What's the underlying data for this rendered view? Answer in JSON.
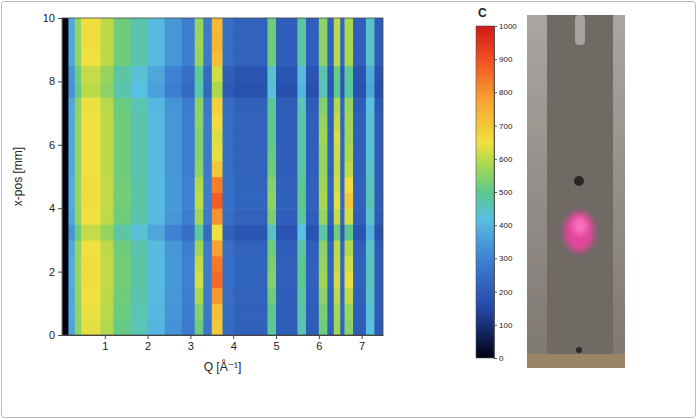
{
  "chart_data": {
    "type": "heatmap",
    "x_label": "Q [Å⁻¹]",
    "y_label": "x-pos [mm]",
    "xlim": [
      0,
      7.5
    ],
    "xticks": [
      1,
      2,
      3,
      4,
      5,
      6,
      7
    ],
    "ylim": [
      0,
      10
    ],
    "yticks": [
      0,
      2,
      4,
      6,
      8,
      10
    ],
    "x_edges": [
      0,
      0.15,
      0.3,
      0.45,
      0.9,
      1.2,
      1.6,
      2.0,
      2.4,
      2.8,
      3.1,
      3.3,
      3.5,
      3.75,
      4.0,
      4.8,
      5.0,
      5.5,
      5.7,
      6.0,
      6.2,
      6.35,
      6.5,
      6.6,
      6.8,
      7.1,
      7.3,
      7.5
    ],
    "y_edges": [
      0,
      0.5,
      1,
      1.5,
      2,
      2.5,
      3,
      3.5,
      4,
      4.5,
      5,
      5.5,
      6,
      6.5,
      7,
      7.5,
      8,
      8.5,
      9,
      9.5,
      10
    ],
    "cells": [
      [
        0,
        370,
        550,
        640,
        590,
        510,
        460,
        400,
        330,
        280,
        520,
        270,
        700,
        240,
        215,
        490,
        205,
        460,
        205,
        520,
        215,
        570,
        225,
        550,
        205,
        420,
        195
      ],
      [
        0,
        375,
        555,
        645,
        595,
        515,
        465,
        405,
        335,
        285,
        540,
        275,
        720,
        245,
        218,
        500,
        208,
        470,
        208,
        530,
        218,
        580,
        228,
        560,
        208,
        430,
        198
      ],
      [
        0,
        380,
        560,
        650,
        600,
        520,
        470,
        410,
        340,
        290,
        580,
        280,
        790,
        250,
        220,
        520,
        210,
        480,
        210,
        550,
        220,
        600,
        230,
        600,
        210,
        440,
        200
      ],
      [
        0,
        385,
        565,
        655,
        605,
        525,
        475,
        415,
        345,
        295,
        620,
        285,
        860,
        255,
        225,
        540,
        215,
        490,
        215,
        570,
        225,
        620,
        235,
        640,
        215,
        450,
        205
      ],
      [
        0,
        385,
        565,
        655,
        605,
        525,
        475,
        415,
        345,
        295,
        610,
        285,
        840,
        255,
        225,
        530,
        215,
        490,
        215,
        560,
        225,
        610,
        235,
        620,
        215,
        450,
        205
      ],
      [
        0,
        380,
        560,
        650,
        600,
        520,
        470,
        410,
        340,
        290,
        570,
        280,
        780,
        250,
        220,
        520,
        210,
        480,
        210,
        550,
        220,
        600,
        230,
        590,
        210,
        440,
        200
      ],
      [
        0,
        340,
        520,
        610,
        560,
        480,
        430,
        370,
        300,
        250,
        480,
        240,
        650,
        215,
        190,
        450,
        180,
        420,
        180,
        480,
        190,
        520,
        200,
        500,
        180,
        390,
        175
      ],
      [
        0,
        380,
        560,
        650,
        600,
        520,
        470,
        410,
        340,
        290,
        570,
        280,
        800,
        250,
        220,
        530,
        210,
        480,
        210,
        560,
        220,
        610,
        230,
        620,
        210,
        440,
        200
      ],
      [
        0,
        385,
        565,
        655,
        605,
        525,
        475,
        415,
        345,
        295,
        600,
        285,
        880,
        255,
        225,
        550,
        215,
        500,
        215,
        580,
        225,
        640,
        235,
        700,
        215,
        460,
        205
      ],
      [
        0,
        385,
        565,
        655,
        605,
        525,
        475,
        415,
        345,
        295,
        590,
        285,
        830,
        255,
        225,
        540,
        215,
        490,
        215,
        570,
        225,
        620,
        235,
        660,
        215,
        450,
        205
      ],
      [
        0,
        380,
        560,
        650,
        600,
        520,
        470,
        410,
        340,
        290,
        550,
        280,
        700,
        250,
        220,
        520,
        210,
        480,
        210,
        560,
        220,
        610,
        230,
        600,
        210,
        440,
        200
      ],
      [
        0,
        380,
        560,
        650,
        600,
        520,
        470,
        410,
        340,
        290,
        540,
        280,
        640,
        250,
        220,
        510,
        210,
        470,
        210,
        560,
        220,
        620,
        230,
        580,
        210,
        430,
        200
      ],
      [
        0,
        380,
        560,
        650,
        600,
        520,
        470,
        410,
        340,
        290,
        540,
        280,
        630,
        250,
        220,
        500,
        210,
        470,
        210,
        570,
        220,
        630,
        230,
        570,
        210,
        430,
        200
      ],
      [
        0,
        380,
        560,
        650,
        600,
        520,
        470,
        410,
        340,
        290,
        550,
        280,
        660,
        250,
        220,
        500,
        210,
        470,
        210,
        560,
        220,
        610,
        230,
        570,
        210,
        430,
        200
      ],
      [
        0,
        375,
        555,
        645,
        595,
        515,
        465,
        405,
        335,
        285,
        550,
        275,
        680,
        245,
        215,
        490,
        205,
        460,
        205,
        540,
        215,
        590,
        225,
        560,
        205,
        420,
        195
      ],
      [
        0,
        330,
        510,
        600,
        550,
        470,
        420,
        360,
        290,
        240,
        470,
        230,
        580,
        200,
        175,
        430,
        170,
        400,
        170,
        460,
        180,
        500,
        185,
        480,
        170,
        370,
        165
      ],
      [
        0,
        340,
        520,
        610,
        560,
        480,
        430,
        370,
        300,
        250,
        490,
        240,
        620,
        210,
        185,
        440,
        180,
        410,
        180,
        470,
        190,
        510,
        195,
        490,
        180,
        380,
        175
      ],
      [
        0,
        380,
        560,
        650,
        600,
        520,
        470,
        410,
        340,
        290,
        560,
        280,
        720,
        250,
        220,
        520,
        210,
        480,
        210,
        550,
        220,
        600,
        230,
        580,
        210,
        440,
        200
      ],
      [
        0,
        380,
        560,
        655,
        600,
        520,
        470,
        410,
        340,
        290,
        570,
        280,
        740,
        250,
        220,
        520,
        210,
        480,
        210,
        550,
        220,
        600,
        230,
        580,
        210,
        440,
        200
      ],
      [
        0,
        380,
        560,
        655,
        600,
        520,
        470,
        410,
        340,
        290,
        560,
        280,
        730,
        250,
        220,
        520,
        210,
        480,
        210,
        550,
        220,
        600,
        230,
        580,
        210,
        440,
        200
      ]
    ],
    "colorbar": {
      "label": "C",
      "range": [
        0,
        1000
      ],
      "ticks": [
        0,
        100,
        200,
        300,
        400,
        500,
        600,
        700,
        800,
        900,
        1000
      ]
    }
  }
}
